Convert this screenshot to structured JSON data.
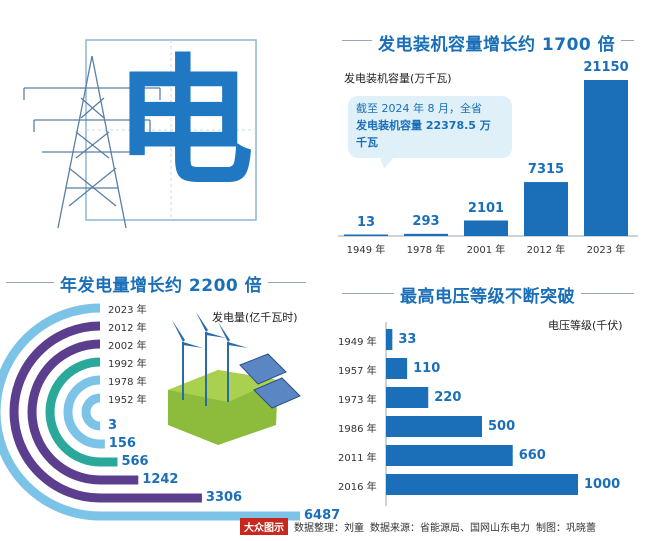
{
  "hero": {
    "char": "电"
  },
  "capacity": {
    "title": "发电装机容量增长约 1700 倍",
    "unit": "发电装机容量(万千瓦)",
    "note": "截至 2024 年 8 月，全省发电装机容量 22378.5 万千瓦",
    "note_line1": "截至 2024 年 8 月，全省",
    "note_line2": "发电装机容量 22378.5 万",
    "note_line3": "千瓦"
  },
  "generation": {
    "title": "年发电量增长约 2200 倍",
    "unit": "发电量(亿千瓦时)"
  },
  "voltage": {
    "title": "最高电压等级不断突破",
    "unit": "电压等级(千伏)"
  },
  "footer": {
    "brand": "大众图示",
    "editor": "数据整理：刘童",
    "source": "数据来源：省能源局、国网山东电力",
    "design": "制图：巩晓蕾"
  },
  "colors": {
    "blue": "#1a6fb8",
    "light_blue": "#7cc3e8",
    "purple": "#5b3e8e",
    "teal": "#2aa89a"
  },
  "chart_data": [
    {
      "type": "bar",
      "title": "发电装机容量增长约 1700 倍",
      "ylabel": "发电装机容量(万千瓦)",
      "categories": [
        "1949 年",
        "1978 年",
        "2001 年",
        "2012 年",
        "2023 年"
      ],
      "values": [
        13,
        293,
        2101,
        7315,
        21150
      ],
      "ylim": [
        0,
        21150
      ]
    },
    {
      "type": "bar",
      "title": "年发电量增长约 2200 倍",
      "ylabel": "发电量(亿千瓦时)",
      "categories": [
        "1952 年",
        "1978 年",
        "1992 年",
        "2002 年",
        "2012 年",
        "2023 年"
      ],
      "values": [
        3,
        156,
        566,
        1242,
        3306,
        6487
      ]
    },
    {
      "type": "bar",
      "title": "最高电压等级不断突破",
      "xlabel": "电压等级(千伏)",
      "categories": [
        "1949 年",
        "1957 年",
        "1973 年",
        "1986 年",
        "2011 年",
        "2016 年"
      ],
      "values": [
        33,
        110,
        220,
        500,
        660,
        1000
      ],
      "xlim": [
        0,
        1000
      ]
    }
  ]
}
